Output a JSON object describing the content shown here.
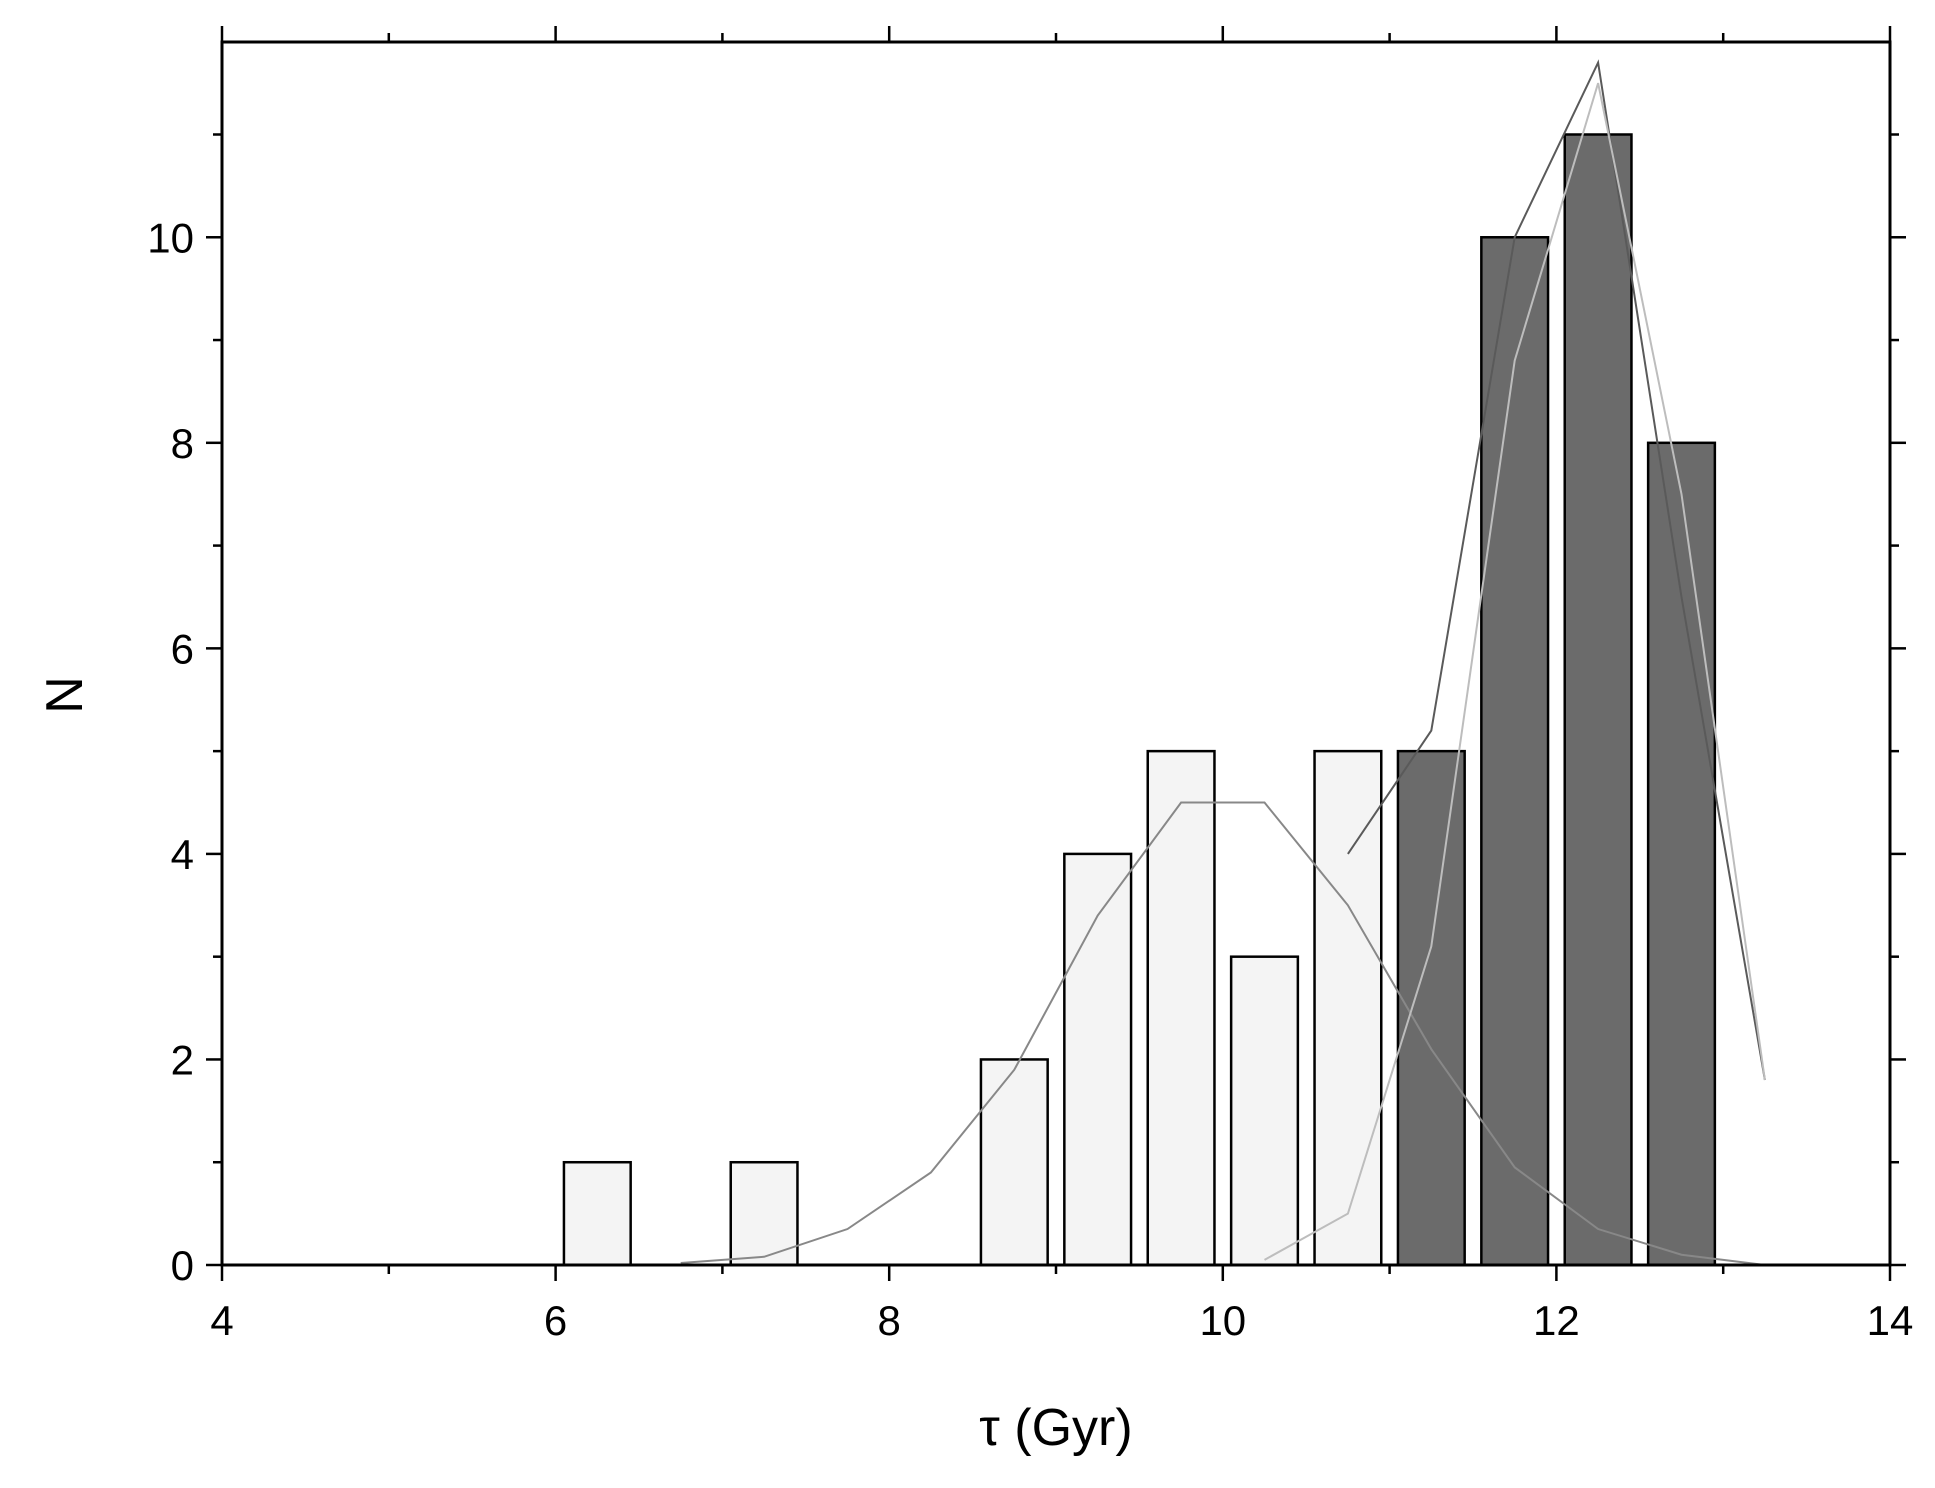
{
  "chart_data": {
    "type": "bar",
    "xlabel": "τ (Gyr)",
    "ylabel": "N",
    "xlim": [
      4,
      14
    ],
    "ylim": [
      0,
      11.9
    ],
    "x_ticks": [
      "4",
      "6",
      "8",
      "10",
      "12",
      "14"
    ],
    "y_ticks": [
      "0",
      "2",
      "4",
      "6",
      "8",
      "10"
    ],
    "grid": false,
    "bar_width": 0.4,
    "series": [
      {
        "fill": "#f4f4f4",
        "x": [
          6.25,
          7.25,
          8.75,
          9.25,
          9.75,
          10.25,
          10.75
        ],
        "values": [
          1,
          1,
          2,
          4,
          5,
          3,
          5
        ]
      },
      {
        "fill": "#6b6b6b",
        "x": [
          11.25,
          11.75,
          12.25,
          12.75
        ],
        "values": [
          5,
          10,
          11,
          8
        ]
      }
    ],
    "curves": [
      {
        "stroke": "#888888",
        "points": [
          [
            6.75,
            0.02
          ],
          [
            7.25,
            0.08
          ],
          [
            7.75,
            0.35
          ],
          [
            8.25,
            0.9
          ],
          [
            8.75,
            1.9
          ],
          [
            9.25,
            3.4
          ],
          [
            9.75,
            4.5
          ],
          [
            10.25,
            4.5
          ],
          [
            10.75,
            3.5
          ],
          [
            11.25,
            2.1
          ],
          [
            11.75,
            0.95
          ],
          [
            12.25,
            0.35
          ],
          [
            12.75,
            0.1
          ],
          [
            13.25,
            0.0
          ]
        ]
      },
      {
        "stroke": "#5a5a5a",
        "points": [
          [
            10.75,
            4.0
          ],
          [
            11.25,
            5.2
          ],
          [
            11.75,
            10.0
          ],
          [
            12.25,
            11.7
          ],
          [
            12.75,
            6.5
          ],
          [
            13.25,
            1.8
          ]
        ]
      },
      {
        "stroke": "#bdbdbd",
        "points": [
          [
            10.25,
            0.05
          ],
          [
            10.75,
            0.5
          ],
          [
            11.25,
            3.1
          ],
          [
            11.75,
            8.8
          ],
          [
            12.25,
            11.5
          ],
          [
            12.75,
            7.5
          ],
          [
            13.25,
            1.8
          ]
        ]
      }
    ]
  }
}
